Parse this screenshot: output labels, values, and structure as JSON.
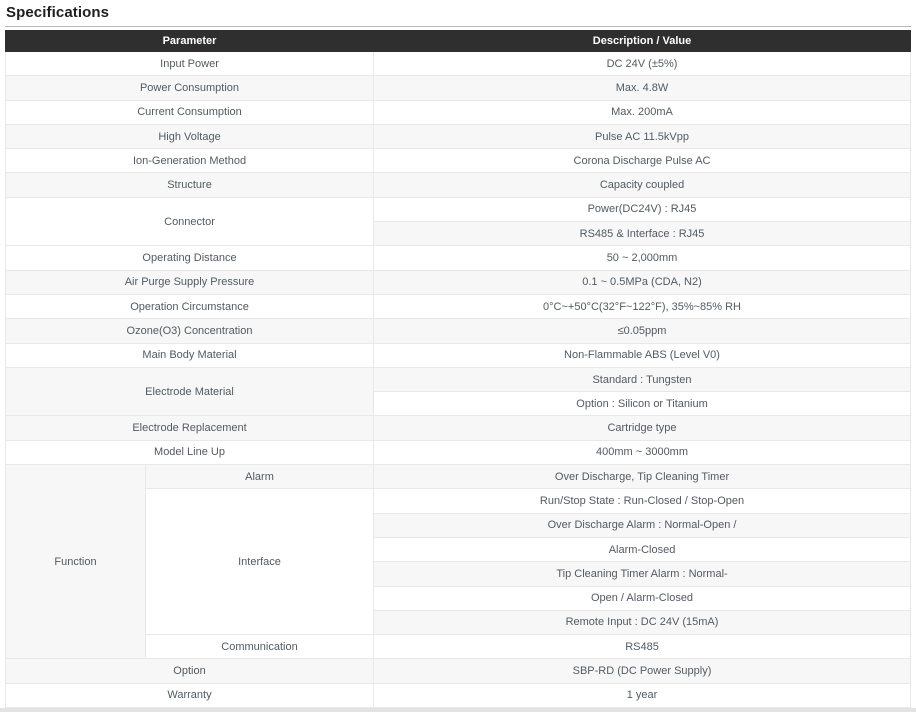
{
  "page": {
    "title": "Specifications"
  },
  "colors": {
    "header_bg": "#2f2f2f",
    "header_text": "#ffffff",
    "row_bg": "#ffffff",
    "row_alt_bg": "#f7f7f7",
    "border": "#e8e8e8",
    "cell_text": "#525a63",
    "title_text": "#1e1e1e",
    "title_rule": "#b9b9b9",
    "bottom_bar": "#e3e3e3"
  },
  "table": {
    "headers": {
      "parameter": "Parameter",
      "description": "Description / Value"
    },
    "rows": [
      [
        {
          "n": "param-cell",
          "t": "Input Power",
          "cs": 2
        },
        {
          "n": "value-cell",
          "t": "DC 24V (±5%)"
        }
      ],
      [
        {
          "n": "param-cell",
          "t": "Power Consumption",
          "cs": 2
        },
        {
          "n": "value-cell",
          "t": "Max. 4.8W"
        }
      ],
      [
        {
          "n": "param-cell",
          "t": "Current Consumption",
          "cs": 2
        },
        {
          "n": "value-cell",
          "t": "Max. 200mA"
        }
      ],
      [
        {
          "n": "param-cell",
          "t": "High Voltage",
          "cs": 2
        },
        {
          "n": "value-cell",
          "t": "Pulse AC 11.5kVpp"
        }
      ],
      [
        {
          "n": "param-cell",
          "t": "Ion-Generation Method",
          "cs": 2
        },
        {
          "n": "value-cell",
          "t": "Corona Discharge Pulse AC"
        }
      ],
      [
        {
          "n": "param-cell",
          "t": "Structure",
          "cs": 2
        },
        {
          "n": "value-cell",
          "t": "Capacity coupled"
        }
      ],
      [
        {
          "n": "param-cell",
          "t": "Connector",
          "cs": 2,
          "rs": 2
        },
        {
          "n": "value-cell",
          "t": "Power(DC24V) : RJ45"
        }
      ],
      [
        {
          "n": "value-cell",
          "t": "RS485 & Interface : RJ45"
        }
      ],
      [
        {
          "n": "param-cell",
          "t": "Operating Distance",
          "cs": 2
        },
        {
          "n": "value-cell",
          "t": "50 ~ 2,000mm"
        }
      ],
      [
        {
          "n": "param-cell",
          "t": "Air Purge Supply Pressure",
          "cs": 2
        },
        {
          "n": "value-cell",
          "t": "0.1 ~ 0.5MPa (CDA, N2)"
        }
      ],
      [
        {
          "n": "param-cell",
          "t": "Operation Circumstance",
          "cs": 2
        },
        {
          "n": "value-cell",
          "t": "0°C~+50°C(32°F~122°F), 35%~85% RH"
        }
      ],
      [
        {
          "n": "param-cell",
          "t": "Ozone(O3) Concentration",
          "cs": 2
        },
        {
          "n": "value-cell",
          "t": "≤0.05ppm"
        }
      ],
      [
        {
          "n": "param-cell",
          "t": "Main Body Material",
          "cs": 2
        },
        {
          "n": "value-cell",
          "t": "Non-Flammable ABS (Level V0)"
        }
      ],
      [
        {
          "n": "param-cell",
          "t": "Electrode Material",
          "cs": 2,
          "rs": 2
        },
        {
          "n": "value-cell",
          "t": "Standard : Tungsten"
        }
      ],
      [
        {
          "n": "value-cell",
          "t": "Option : Silicon or Titanium"
        }
      ],
      [
        {
          "n": "param-cell",
          "t": "Electrode Replacement",
          "cs": 2
        },
        {
          "n": "value-cell",
          "t": "Cartridge type"
        }
      ],
      [
        {
          "n": "param-cell",
          "t": "Model Line Up",
          "cs": 2
        },
        {
          "n": "value-cell",
          "t": "400mm ~ 3000mm"
        }
      ],
      [
        {
          "n": "param-cell",
          "t": "Function",
          "rs": 8
        },
        {
          "n": "sub-param-cell",
          "t": "Alarm"
        },
        {
          "n": "value-cell",
          "t": "Over Discharge, Tip Cleaning Timer"
        }
      ],
      [
        {
          "n": "sub-param-cell",
          "t": "Interface",
          "rs": 6
        },
        {
          "n": "value-cell",
          "t": "Run/Stop State : Run-Closed / Stop-Open"
        }
      ],
      [
        {
          "n": "value-cell",
          "t": "Over Discharge Alarm : Normal-Open /"
        }
      ],
      [
        {
          "n": "value-cell",
          "t": "Alarm-Closed"
        }
      ],
      [
        {
          "n": "value-cell",
          "t": "Tip Cleaning Timer Alarm : Normal-"
        }
      ],
      [
        {
          "n": "value-cell",
          "t": "Open / Alarm-Closed"
        }
      ],
      [
        {
          "n": "value-cell",
          "t": "Remote Input : DC 24V (15mA)"
        }
      ],
      [
        {
          "n": "sub-param-cell",
          "t": "Communication"
        },
        {
          "n": "value-cell",
          "t": "RS485"
        }
      ],
      [
        {
          "n": "param-cell",
          "t": "Option",
          "cs": 2
        },
        {
          "n": "value-cell",
          "t": "SBP-RD (DC Power Supply)"
        }
      ],
      [
        {
          "n": "param-cell",
          "t": "Warranty",
          "cs": 2
        },
        {
          "n": "value-cell",
          "t": "1 year"
        }
      ]
    ]
  }
}
